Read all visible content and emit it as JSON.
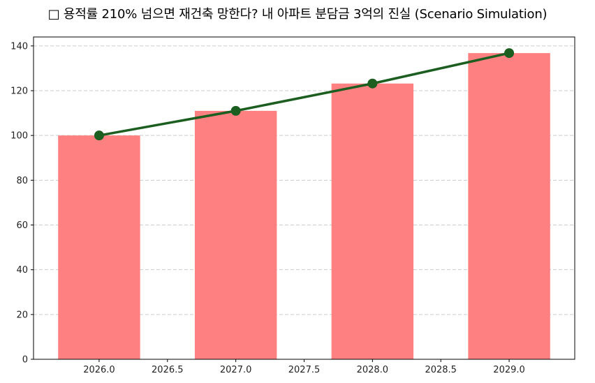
{
  "title": "□ 용적률 210% 넘으면 재건축 망한다? 내 아파트 분담금 3억의 진실 (Scenario Simulation)",
  "colors": {
    "bar": "#ff8080",
    "line": "#1b5e20",
    "grid": "#cccccc",
    "axis": "#000000"
  },
  "chart_data": {
    "type": "bar",
    "title": "□ 용적률 210% 넘으면 재건축 망한다? 내 아파트 분담금 3억의 진실 (Scenario Simulation)",
    "xlabel": "",
    "ylabel": "",
    "categories": [
      2026,
      2027,
      2028,
      2029
    ],
    "series": [
      {
        "name": "bar",
        "type": "bar",
        "values": [
          100,
          111,
          123.2,
          136.8
        ],
        "color": "#ff8080"
      },
      {
        "name": "line",
        "type": "line",
        "values": [
          100,
          111,
          123.2,
          136.8
        ],
        "color": "#1b5e20",
        "marker": "circle"
      }
    ],
    "xlim": [
      2025.52,
      2029.48
    ],
    "ylim": [
      0,
      144
    ],
    "xticks": [
      "2026.0",
      "2026.5",
      "2027.0",
      "2027.5",
      "2028.0",
      "2028.5",
      "2029.0"
    ],
    "yticks": [
      "0",
      "20",
      "40",
      "60",
      "80",
      "100",
      "120",
      "140"
    ],
    "grid": {
      "y": true,
      "x": false,
      "style": "dashed"
    },
    "legend": null
  }
}
